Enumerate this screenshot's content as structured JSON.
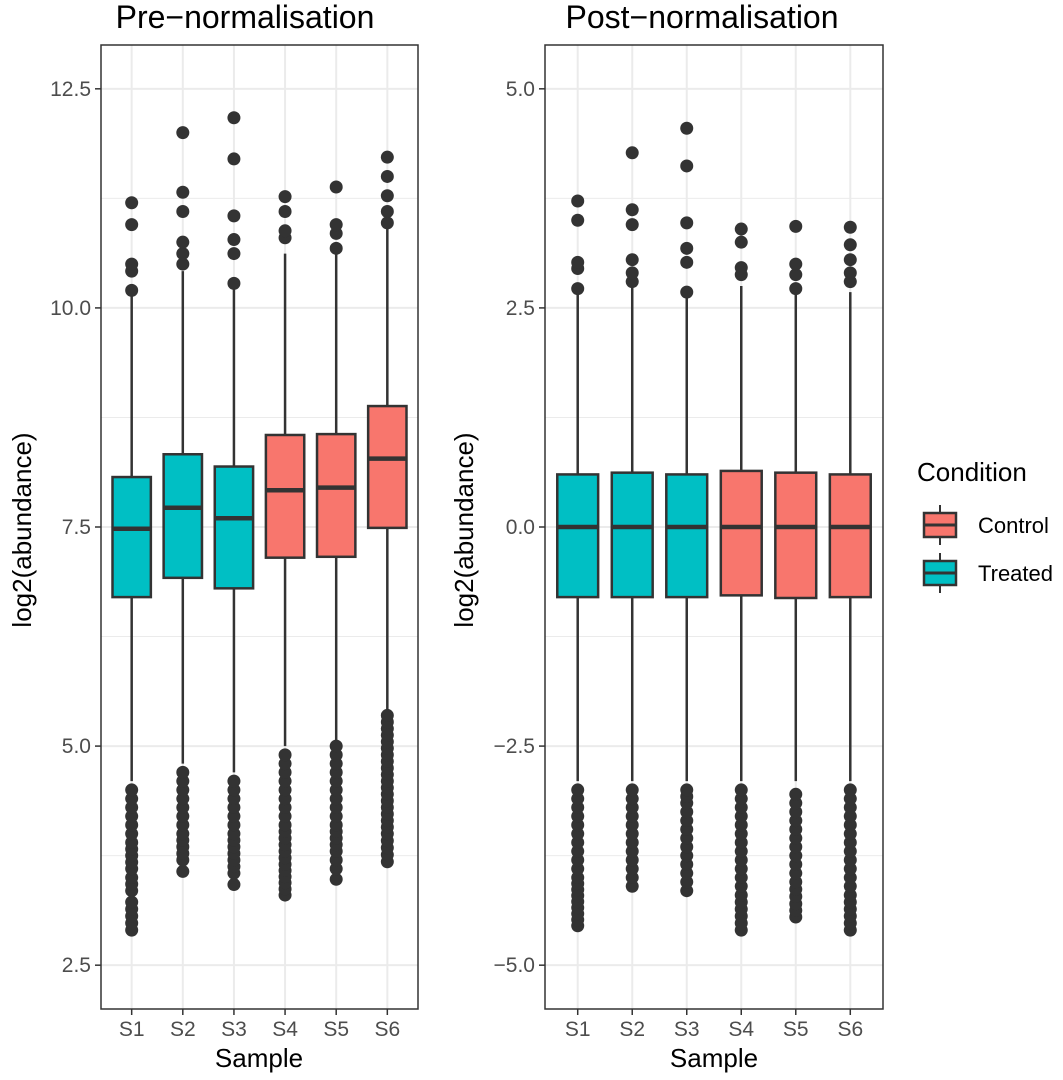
{
  "legend": {
    "title": "Condition",
    "placement": "right",
    "items": [
      {
        "label": "Control",
        "color": "#F8766D"
      },
      {
        "label": "Treated",
        "color": "#00BFC4"
      }
    ]
  },
  "chart_data": [
    {
      "type": "boxplot",
      "title": "Pre−normalisation",
      "xlabel": "Sample",
      "ylabel": "log2(abundance)",
      "ylim": [
        2.5,
        12.5
      ],
      "yticks": [
        2.5,
        5.0,
        7.5,
        10.0,
        12.5
      ],
      "ytick_labels": [
        "2.5",
        "5.0",
        "7.5",
        "10.0",
        "12.5"
      ],
      "grid": true,
      "categories": [
        "S1",
        "S2",
        "S3",
        "S4",
        "S5",
        "S6"
      ],
      "boxes": [
        {
          "sample": "S1",
          "condition": "Treated",
          "lower_whisker": 4.6,
          "q1": 6.7,
          "median": 7.48,
          "q3": 8.07,
          "upper_whisker": 10.15,
          "outliers_high": [
            10.2,
            10.42,
            10.5,
            10.95,
            11.2
          ],
          "outliers_low": [
            2.9,
            3.22,
            3.35,
            3.5,
            3.6,
            3.75,
            3.9,
            4.0,
            4.1,
            4.2,
            4.3,
            4.4,
            4.5
          ]
        },
        {
          "sample": "S2",
          "condition": "Treated",
          "lower_whisker": 4.8,
          "q1": 6.92,
          "median": 7.72,
          "q3": 8.33,
          "upper_whisker": 10.42,
          "outliers_high": [
            10.5,
            10.62,
            10.75,
            11.1,
            11.32,
            12.0
          ],
          "outliers_low": [
            3.57,
            3.7,
            3.85,
            4.0,
            4.1,
            4.2,
            4.3,
            4.4,
            4.5,
            4.6,
            4.7
          ]
        },
        {
          "sample": "S3",
          "condition": "Treated",
          "lower_whisker": 4.7,
          "q1": 6.8,
          "median": 7.6,
          "q3": 8.19,
          "upper_whisker": 10.22,
          "outliers_high": [
            10.28,
            10.62,
            10.78,
            11.05,
            11.7,
            12.17
          ],
          "outliers_low": [
            3.42,
            3.55,
            3.7,
            3.85,
            4.0,
            4.1,
            4.2,
            4.3,
            4.4,
            4.5,
            4.6
          ]
        },
        {
          "sample": "S4",
          "condition": "Control",
          "lower_whisker": 5.0,
          "q1": 7.15,
          "median": 7.92,
          "q3": 8.55,
          "upper_whisker": 10.62,
          "outliers_high": [
            10.8,
            10.88,
            11.1,
            11.27
          ],
          "outliers_low": [
            3.3,
            3.65,
            3.8,
            3.95,
            4.1,
            4.2,
            4.3,
            4.4,
            4.5,
            4.6,
            4.7,
            4.8,
            4.9
          ]
        },
        {
          "sample": "S5",
          "condition": "Control",
          "lower_whisker": 5.05,
          "q1": 7.16,
          "median": 7.95,
          "q3": 8.56,
          "upper_whisker": 10.62,
          "outliers_high": [
            10.68,
            10.85,
            10.95,
            11.38
          ],
          "outliers_low": [
            3.48,
            3.6,
            3.8,
            3.95,
            4.1,
            4.2,
            4.3,
            4.4,
            4.5,
            4.6,
            4.7,
            4.8,
            4.9,
            5.0
          ]
        },
        {
          "sample": "S6",
          "condition": "Control",
          "lower_whisker": 5.42,
          "q1": 7.49,
          "median": 8.28,
          "q3": 8.88,
          "upper_whisker": 10.92,
          "outliers_high": [
            10.97,
            11.1,
            11.28,
            11.5,
            11.72
          ],
          "outliers_low": [
            3.68,
            4.0,
            4.15,
            4.3,
            4.45,
            4.6,
            4.75,
            4.9,
            5.05,
            5.2,
            5.35
          ]
        }
      ]
    },
    {
      "type": "boxplot",
      "title": "Post−normalisation",
      "xlabel": "Sample",
      "ylabel": "log2(abundance)",
      "ylim": [
        -5.0,
        5.0
      ],
      "yticks": [
        -5.0,
        -2.5,
        0.0,
        2.5,
        5.0
      ],
      "ytick_labels": [
        "−5.0",
        "−2.5",
        "0.0",
        "2.5",
        "5.0"
      ],
      "grid": true,
      "categories": [
        "S1",
        "S2",
        "S3",
        "S4",
        "S5",
        "S6"
      ],
      "boxes": [
        {
          "sample": "S1",
          "condition": "Treated",
          "lower_whisker": -2.9,
          "q1": -0.8,
          "median": 0.0,
          "q3": 0.6,
          "upper_whisker": 2.65,
          "outliers_high": [
            2.72,
            2.95,
            3.02,
            3.5,
            3.72
          ],
          "outliers_low": [
            -4.55,
            -4.0,
            -3.8,
            -3.6,
            -3.4,
            -3.2,
            -3.0
          ]
        },
        {
          "sample": "S2",
          "condition": "Treated",
          "lower_whisker": -2.9,
          "q1": -0.8,
          "median": 0.0,
          "q3": 0.62,
          "upper_whisker": 2.75,
          "outliers_high": [
            2.8,
            2.9,
            3.05,
            3.45,
            3.62,
            4.27
          ],
          "outliers_low": [
            -4.1,
            -3.9,
            -3.7,
            -3.5,
            -3.3,
            -3.1,
            -3.0
          ]
        },
        {
          "sample": "S3",
          "condition": "Treated",
          "lower_whisker": -2.9,
          "q1": -0.8,
          "median": 0.0,
          "q3": 0.6,
          "upper_whisker": 2.62,
          "outliers_high": [
            2.68,
            3.02,
            3.18,
            3.47,
            4.12,
            4.55
          ],
          "outliers_low": [
            -4.15,
            -3.95,
            -3.75,
            -3.55,
            -3.35,
            -3.15,
            -3.0
          ]
        },
        {
          "sample": "S4",
          "condition": "Control",
          "lower_whisker": -2.9,
          "q1": -0.78,
          "median": 0.0,
          "q3": 0.64,
          "upper_whisker": 2.75,
          "outliers_high": [
            2.88,
            2.96,
            3.25,
            3.4
          ],
          "outliers_low": [
            -4.6,
            -4.2,
            -4.0,
            -3.8,
            -3.6,
            -3.4,
            -3.2,
            -3.0
          ]
        },
        {
          "sample": "S5",
          "condition": "Control",
          "lower_whisker": -2.9,
          "q1": -0.81,
          "median": 0.0,
          "q3": 0.62,
          "upper_whisker": 2.68,
          "outliers_high": [
            2.72,
            2.88,
            3.0,
            3.43
          ],
          "outliers_low": [
            -4.45,
            -4.3,
            -4.05,
            -3.85,
            -3.65,
            -3.45,
            -3.25,
            -3.05
          ]
        },
        {
          "sample": "S6",
          "condition": "Control",
          "lower_whisker": -2.9,
          "q1": -0.8,
          "median": 0.0,
          "q3": 0.6,
          "upper_whisker": 2.68,
          "outliers_high": [
            2.8,
            2.9,
            3.05,
            3.22,
            3.42
          ],
          "outliers_low": [
            -4.6,
            -4.2,
            -4.0,
            -3.8,
            -3.6,
            -3.4,
            -3.2,
            -3.0
          ]
        }
      ]
    }
  ]
}
